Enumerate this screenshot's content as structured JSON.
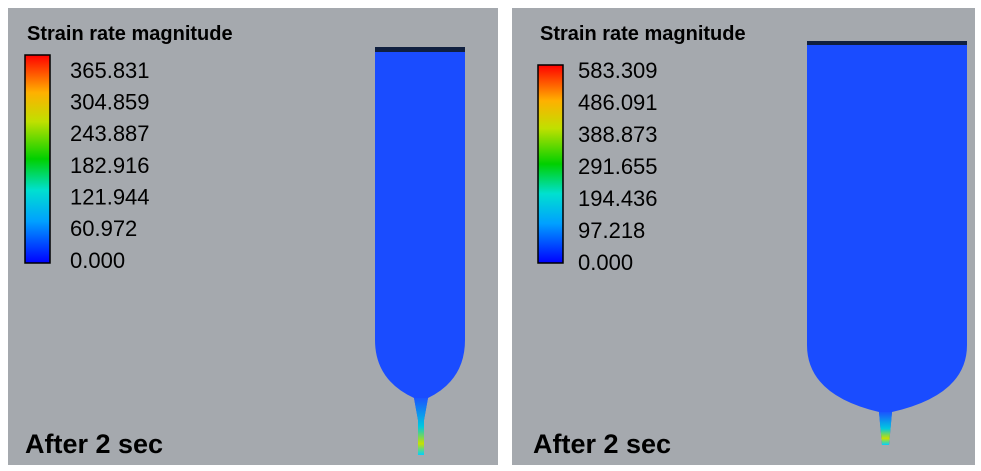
{
  "panels": [
    {
      "title": "Strain rate magnitude",
      "legend_labels": [
        "365.831",
        "304.859",
        "243.887",
        "182.916",
        "121.944",
        "60.972",
        "0.000"
      ],
      "caption": "After 2 sec"
    },
    {
      "title": "Strain rate magnitude",
      "legend_labels": [
        "583.309",
        "486.091",
        "388.873",
        "291.655",
        "194.436",
        "97.218",
        "0.000"
      ],
      "caption": "After 2 sec"
    }
  ]
}
